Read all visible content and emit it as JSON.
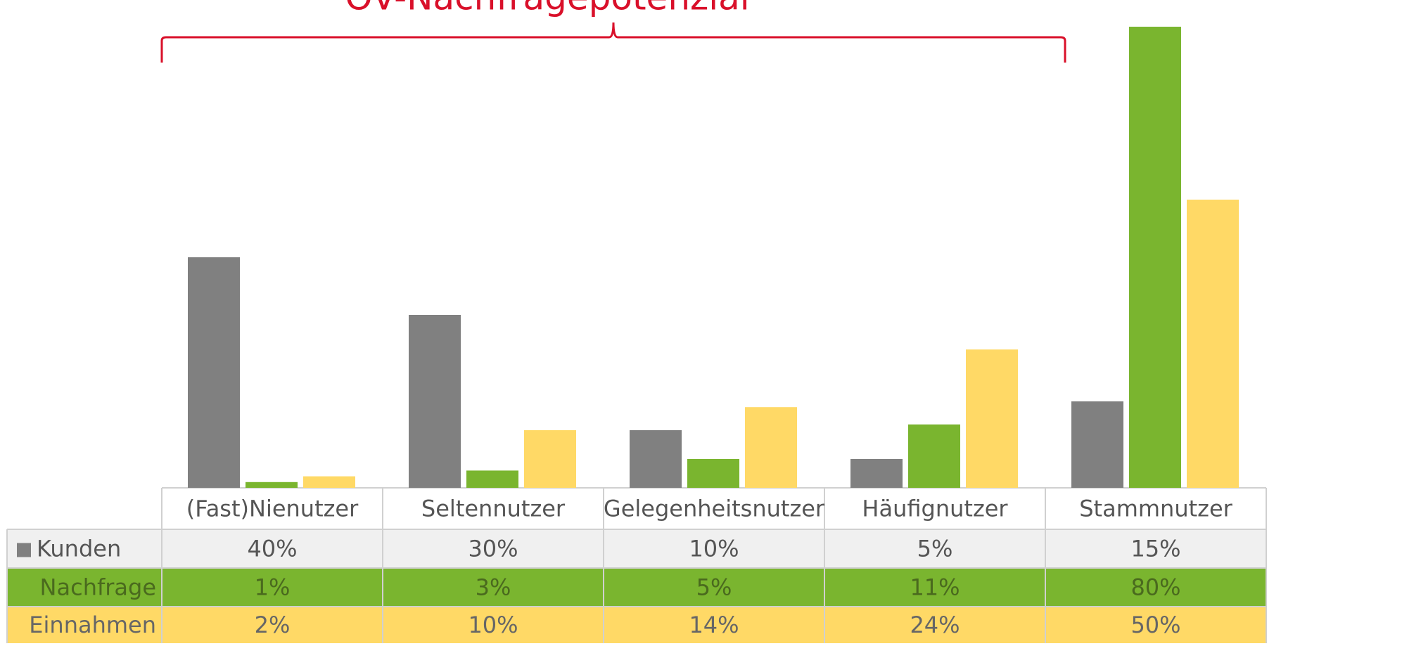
{
  "chart_data": {
    "type": "bar",
    "title": "ÖV-Nachfragepotenzial",
    "categories": [
      "(Fast)Nienutzer",
      "Seltennutzer",
      "Gelegenheitsnutzer",
      "Häufignutzer",
      "Stammnutzer"
    ],
    "series": [
      {
        "name": "Kunden",
        "color": "#808080",
        "values": [
          40,
          30,
          10,
          5,
          15
        ],
        "value_labels": [
          "40%",
          "30%",
          "10%",
          "5%",
          "15%"
        ]
      },
      {
        "name": "Nachfrage",
        "color": "#7ab52f",
        "values": [
          1,
          3,
          5,
          11,
          80
        ],
        "value_labels": [
          "1%",
          "3%",
          "5%",
          "11%",
          "80%"
        ]
      },
      {
        "name": "Einnahmen",
        "color": "#ffd966",
        "values": [
          2,
          10,
          14,
          24,
          50
        ],
        "value_labels": [
          "2%",
          "10%",
          "14%",
          "24%",
          "50%"
        ]
      }
    ]
  }
}
